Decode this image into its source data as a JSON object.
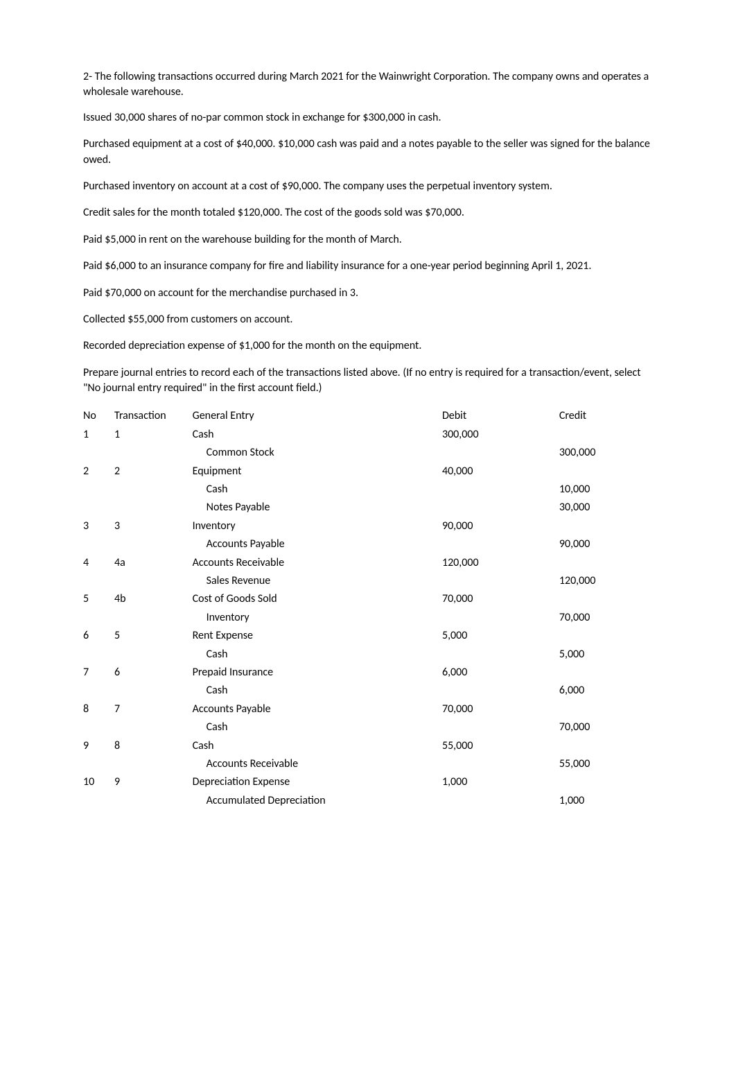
{
  "intro": "2- The following transactions occurred during March 2021 for the Wainwright Corporation. The company owns and operates a wholesale warehouse.",
  "transactions_text": [
    " Issued 30,000 shares of no-par common stock in exchange for $300,000 in cash.",
    "Purchased equipment at a cost of $40,000. $10,000 cash was paid and a notes payable to the seller was signed for the balance owed.",
    "Purchased inventory on account at a cost of $90,000. The company uses the perpetual inventory system.",
    "Credit sales for the month totaled $120,000. The cost of the goods sold was $70,000.",
    "Paid $5,000 in rent on the warehouse building for the month of March.",
    "Paid $6,000 to an insurance company for fire and liability insurance for a one-year period beginning April 1, 2021.",
    "Paid $70,000 on account for the merchandise purchased in 3.",
    "Collected $55,000 from customers on account.",
    "Recorded depreciation expense of $1,000 for the month on the equipment."
  ],
  "instructions": "Prepare journal entries to record each of the transactions listed above. (If no entry is required for a transaction/event, select \"No journal entry required\" in the first account field.)",
  "headers": {
    "no": "No",
    "transaction": "Transaction",
    "general_entry": "General Entry",
    "debit": "Debit",
    "credit": "Credit"
  },
  "entries": [
    {
      "no": "1",
      "trans": "1",
      "account": "Cash",
      "debit": "300,000",
      "credit": "",
      "indent": 0
    },
    {
      "no": "",
      "trans": "",
      "account": "Common Stock",
      "debit": "",
      "credit": "300,000",
      "indent": 1
    },
    {
      "no": "2",
      "trans": "2",
      "account": "Equipment",
      "debit": "40,000",
      "credit": "",
      "indent": 0
    },
    {
      "no": "",
      "trans": "",
      "account": "Cash",
      "debit": "",
      "credit": "10,000",
      "indent": 1
    },
    {
      "no": "",
      "trans": "",
      "account": "Notes Payable",
      "debit": "",
      "credit": "30,000",
      "indent": 1
    },
    {
      "no": "3",
      "trans": "3",
      "account": "Inventory",
      "debit": "90,000",
      "credit": "",
      "indent": 0
    },
    {
      "no": "",
      "trans": "",
      "account": "Accounts Payable",
      "debit": "",
      "credit": "90,000",
      "indent": 1
    },
    {
      "no": "4",
      "trans": "4a",
      "account": "Accounts Receivable",
      "debit": "120,000",
      "credit": "",
      "indent": 0
    },
    {
      "no": "",
      "trans": "",
      "account": "Sales Revenue",
      "debit": "",
      "credit": "120,000",
      "indent": 1
    },
    {
      "no": "5",
      "trans": "4b",
      "account": "Cost of Goods Sold",
      "debit": "70,000",
      "credit": "",
      "indent": 0
    },
    {
      "no": "",
      "trans": "",
      "account": "Inventory",
      "debit": "",
      "credit": "70,000",
      "indent": 1
    },
    {
      "no": "6",
      "trans": "5",
      "account": "Rent Expense",
      "debit": "5,000",
      "credit": "",
      "indent": 0
    },
    {
      "no": "",
      "trans": "",
      "account": "Cash",
      "debit": "",
      "credit": "5,000",
      "indent": 1
    },
    {
      "no": "7",
      "trans": "6",
      "account": "Prepaid Insurance",
      "debit": "6,000",
      "credit": "",
      "indent": 0
    },
    {
      "no": "",
      "trans": "",
      "account": "Cash",
      "debit": "",
      "credit": "6,000",
      "indent": 1
    },
    {
      "no": "8",
      "trans": "7",
      "account": "Accounts Payable",
      "debit": "70,000",
      "credit": "",
      "indent": 0
    },
    {
      "no": "",
      "trans": "",
      "account": "Cash",
      "debit": "",
      "credit": "70,000",
      "indent": 1
    },
    {
      "no": "9",
      "trans": "8",
      "account": "Cash",
      "debit": "55,000",
      "credit": "",
      "indent": 0
    },
    {
      "no": "",
      "trans": "",
      "account": "Accounts Receivable",
      "debit": "",
      "credit": "55,000",
      "indent": 1
    },
    {
      "no": "10",
      "trans": "9",
      "account": "Depreciation Expense",
      "debit": "1,000",
      "credit": "",
      "indent": 0
    },
    {
      "no": "",
      "trans": "",
      "account": "Accumulated Depreciation",
      "debit": "",
      "credit": "1,000",
      "indent": 1
    }
  ]
}
